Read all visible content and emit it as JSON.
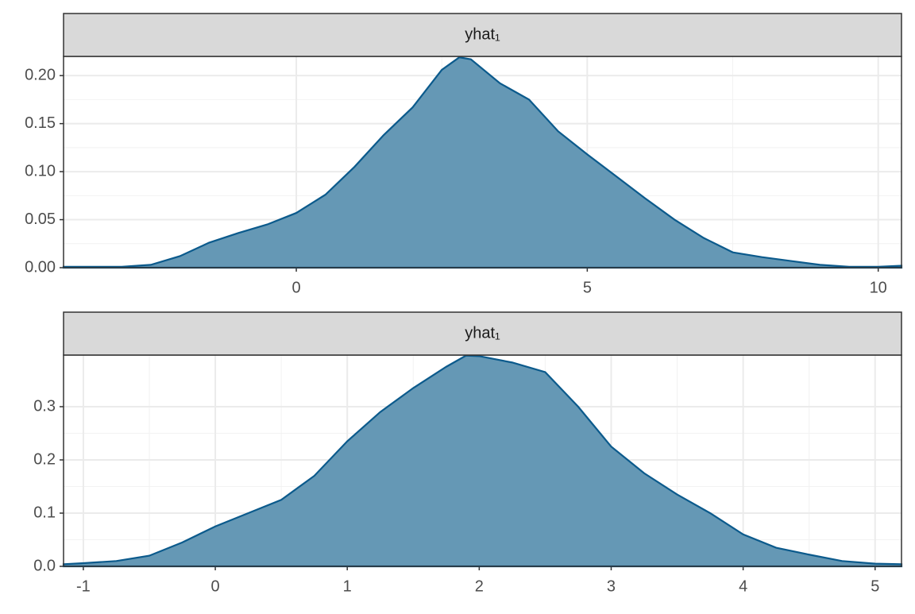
{
  "chart_data": [
    {
      "type": "density",
      "title": "yhat₁",
      "color": "#6598b5",
      "line_color": "#0b5a8c",
      "x": [
        -4,
        -3,
        -2.5,
        -2,
        -1.5,
        -1,
        -0.5,
        0,
        0.5,
        1,
        1.5,
        2,
        2.5,
        2.8,
        3,
        3.5,
        4,
        4.5,
        5,
        5.5,
        6,
        6.5,
        7,
        7.5,
        8,
        8.5,
        9,
        9.5,
        10,
        10.4
      ],
      "values": [
        0.001,
        0.001,
        0.003,
        0.012,
        0.026,
        0.036,
        0.045,
        0.057,
        0.076,
        0.105,
        0.138,
        0.167,
        0.206,
        0.219,
        0.217,
        0.192,
        0.175,
        0.142,
        0.118,
        0.095,
        0.072,
        0.05,
        0.031,
        0.016,
        0.011,
        0.007,
        0.003,
        0.001,
        0.001,
        0.002
      ],
      "xlim": [
        -4,
        10.4
      ],
      "xticks": [
        0,
        5,
        10
      ],
      "ylim": [
        0,
        0.22
      ],
      "yticks": [
        {
          "value": 0,
          "label": "0.00"
        },
        0.05,
        {
          "value": 0.1,
          "label": "0.10"
        },
        0.15,
        {
          "value": 0.2,
          "label": "0.20"
        }
      ],
      "grid": true
    },
    {
      "type": "density",
      "title": "yhat₁",
      "color": "#6598b5",
      "line_color": "#0b5a8c",
      "x": [
        -1.15,
        -1,
        -0.75,
        -0.5,
        -0.25,
        0,
        0.25,
        0.5,
        0.75,
        1,
        1.25,
        1.5,
        1.75,
        1.9,
        2,
        2.25,
        2.5,
        2.75,
        3,
        3.25,
        3.5,
        3.75,
        4,
        4.25,
        4.5,
        4.75,
        5,
        5.2
      ],
      "values": [
        0.004,
        0.006,
        0.01,
        0.02,
        0.045,
        0.075,
        0.1,
        0.125,
        0.17,
        0.235,
        0.29,
        0.335,
        0.375,
        0.396,
        0.395,
        0.383,
        0.365,
        0.3,
        0.225,
        0.175,
        0.135,
        0.1,
        0.06,
        0.035,
        0.022,
        0.01,
        0.005,
        0.004
      ],
      "xlim": [
        -1.15,
        5.2
      ],
      "xticks": [
        -1,
        0,
        1,
        2,
        3,
        4,
        5
      ],
      "ylim": [
        0,
        0.397
      ],
      "yticks": [
        {
          "value": 0,
          "label": "0.0"
        },
        0.1,
        0.2,
        0.3
      ],
      "grid": true
    }
  ]
}
